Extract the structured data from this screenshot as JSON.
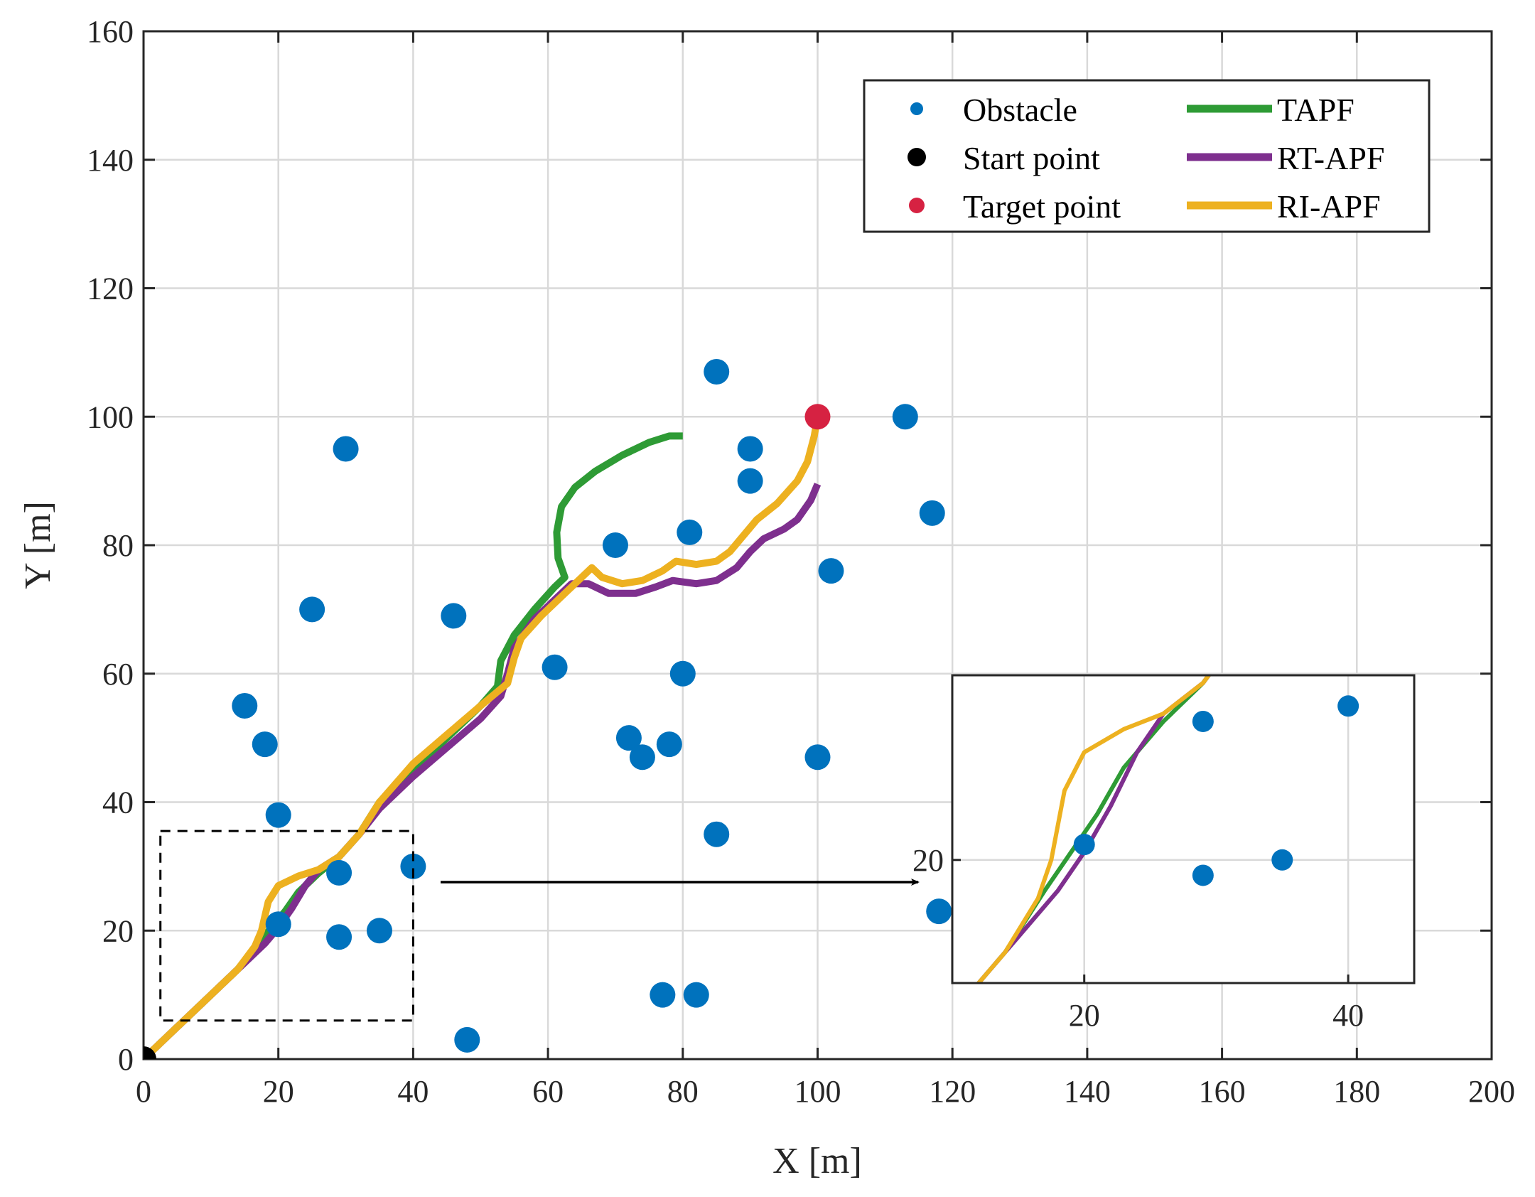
{
  "chart_data": {
    "type": "scatter",
    "xlabel": "X [m]",
    "ylabel": "Y [m]",
    "xlim": [
      0,
      200
    ],
    "ylim": [
      0,
      160
    ],
    "xticks": [
      0,
      20,
      40,
      60,
      80,
      100,
      120,
      140,
      160,
      180,
      200
    ],
    "yticks": [
      0,
      20,
      40,
      60,
      80,
      100,
      120,
      140,
      160
    ],
    "grid": true,
    "legend_position": "top-right",
    "obstacles": {
      "name": "Obstacle",
      "color": "#0072BD",
      "points": [
        [
          15,
          55
        ],
        [
          18,
          49
        ],
        [
          20,
          38
        ],
        [
          20,
          21
        ],
        [
          25,
          70
        ],
        [
          29,
          29
        ],
        [
          29,
          19
        ],
        [
          30,
          95
        ],
        [
          35,
          20
        ],
        [
          40,
          30
        ],
        [
          46,
          69
        ],
        [
          48,
          3
        ],
        [
          61,
          61
        ],
        [
          70,
          80
        ],
        [
          72,
          50
        ],
        [
          74,
          47
        ],
        [
          77,
          10
        ],
        [
          78,
          49
        ],
        [
          80,
          60
        ],
        [
          81,
          82
        ],
        [
          82,
          10
        ],
        [
          85,
          107
        ],
        [
          85,
          35
        ],
        [
          90,
          95
        ],
        [
          90,
          90
        ],
        [
          100,
          47
        ],
        [
          102,
          76
        ],
        [
          113,
          100
        ],
        [
          117,
          85
        ],
        [
          118,
          23
        ]
      ]
    },
    "start_point": {
      "name": "Start point",
      "color": "#000000",
      "point": [
        0,
        0
      ]
    },
    "target_point": {
      "name": "Target point",
      "color": "#D62242",
      "point": [
        100,
        100
      ]
    },
    "series": [
      {
        "name": "TAPF",
        "color": "#2E9B35",
        "points": [
          [
            0,
            0
          ],
          [
            5,
            5
          ],
          [
            10,
            10
          ],
          [
            14,
            14
          ],
          [
            17,
            18
          ],
          [
            19,
            20.5
          ],
          [
            21,
            23
          ],
          [
            23,
            26
          ],
          [
            26,
            29
          ],
          [
            29,
            31.5
          ],
          [
            32,
            35
          ],
          [
            35,
            40
          ],
          [
            40,
            45
          ],
          [
            45,
            50
          ],
          [
            50,
            55
          ],
          [
            52.5,
            58
          ],
          [
            53,
            62
          ],
          [
            55,
            66
          ],
          [
            58,
            70
          ],
          [
            61,
            73.5
          ],
          [
            62.5,
            75
          ],
          [
            61.5,
            78
          ],
          [
            61.3,
            82
          ],
          [
            62,
            86
          ],
          [
            64,
            89
          ],
          [
            67,
            91.5
          ],
          [
            71,
            94
          ],
          [
            75,
            96
          ],
          [
            78,
            97
          ],
          [
            80,
            97
          ]
        ]
      },
      {
        "name": "RT-APF",
        "color": "#7E2F8E",
        "points": [
          [
            0,
            0
          ],
          [
            5,
            5
          ],
          [
            10,
            10
          ],
          [
            15,
            15
          ],
          [
            18,
            18
          ],
          [
            20,
            20.5
          ],
          [
            22,
            23.5
          ],
          [
            24,
            27
          ],
          [
            26,
            29.5
          ],
          [
            29,
            31.5
          ],
          [
            32,
            35
          ],
          [
            35,
            39
          ],
          [
            40,
            44
          ],
          [
            45,
            48.5
          ],
          [
            50,
            53
          ],
          [
            53,
            56.5
          ],
          [
            54,
            60
          ],
          [
            55,
            64
          ],
          [
            58,
            68.5
          ],
          [
            61,
            71.5
          ],
          [
            63.5,
            74
          ],
          [
            66,
            74
          ],
          [
            69,
            72.5
          ],
          [
            73,
            72.5
          ],
          [
            76,
            73.5
          ],
          [
            78.5,
            74.5
          ],
          [
            82,
            74
          ],
          [
            85,
            74.5
          ],
          [
            88,
            76.5
          ],
          [
            90,
            79
          ],
          [
            92,
            81
          ],
          [
            95,
            82.5
          ],
          [
            97,
            84
          ],
          [
            99,
            87
          ],
          [
            100,
            89.5
          ]
        ]
      },
      {
        "name": "RI-APF",
        "color": "#EDB120",
        "points": [
          [
            0,
            0
          ],
          [
            5,
            5
          ],
          [
            10,
            10
          ],
          [
            14,
            14
          ],
          [
            16.5,
            17.5
          ],
          [
            17.5,
            20
          ],
          [
            18.5,
            24.5
          ],
          [
            20,
            27
          ],
          [
            23,
            28.5
          ],
          [
            26,
            29.5
          ],
          [
            29,
            31.5
          ],
          [
            32,
            35
          ],
          [
            35,
            40
          ],
          [
            40,
            46
          ],
          [
            45,
            50.5
          ],
          [
            50,
            55
          ],
          [
            54,
            58.5
          ],
          [
            55,
            62.5
          ],
          [
            56,
            65.5
          ],
          [
            59,
            69
          ],
          [
            62,
            72
          ],
          [
            65,
            75
          ],
          [
            66.5,
            76.5
          ],
          [
            68,
            75
          ],
          [
            71,
            74
          ],
          [
            74,
            74.5
          ],
          [
            77,
            76
          ],
          [
            79,
            77.5
          ],
          [
            82,
            77
          ],
          [
            85,
            77.5
          ],
          [
            87,
            79
          ],
          [
            89,
            81.5
          ],
          [
            91,
            84
          ],
          [
            94,
            86.5
          ],
          [
            97,
            90
          ],
          [
            98.5,
            93
          ],
          [
            99.5,
            97
          ],
          [
            100,
            100
          ]
        ]
      }
    ],
    "zoom_box": {
      "x_range": [
        2.5,
        40
      ],
      "y_range": [
        6,
        35.5
      ]
    },
    "inset": {
      "xlim": [
        10,
        45
      ],
      "ylim": [
        12,
        32
      ],
      "xticks": [
        20,
        40
      ],
      "yticks": [
        20
      ],
      "annotation": "arrow from dashed zoom box to inset"
    }
  }
}
